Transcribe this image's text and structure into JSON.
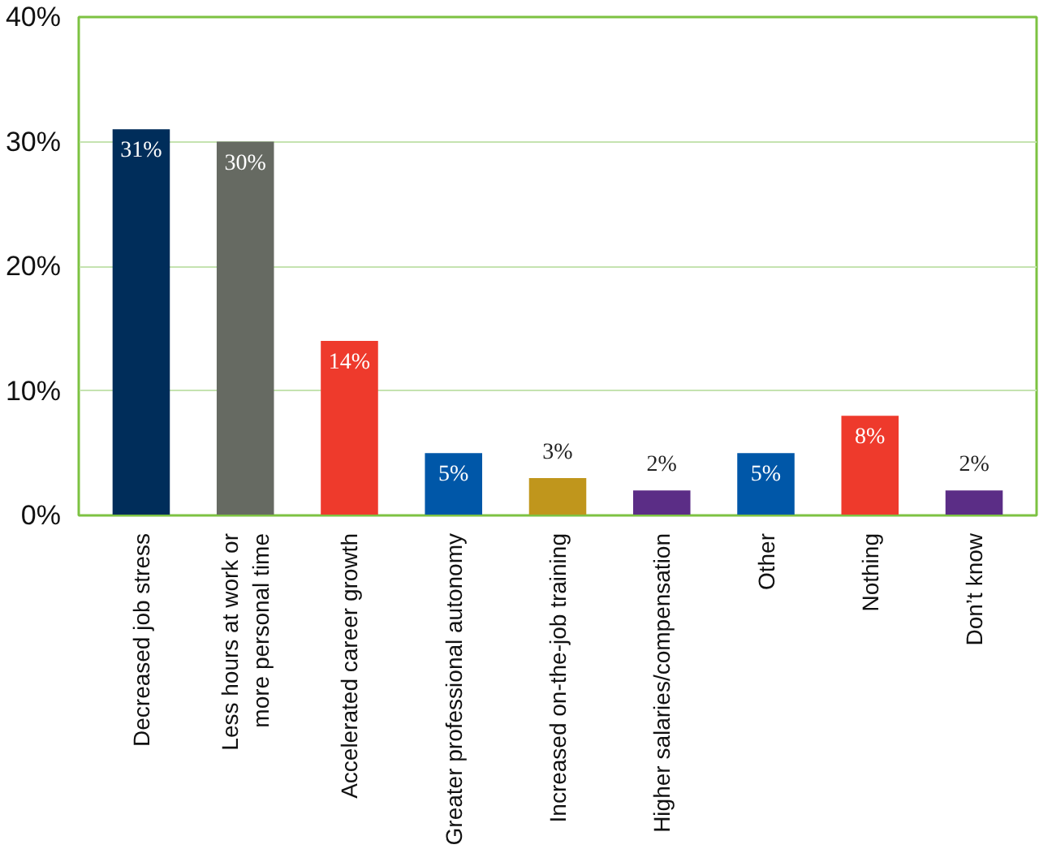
{
  "chart_data": {
    "type": "bar",
    "categories": [
      "Decreased job stress",
      "Less hours at work or\nmore personal time",
      "Accelerated career growth",
      "Greater professional autonomy",
      "Increased on-the-job training",
      "Higher salaries/compensation",
      "Other",
      "Nothing",
      "Don’t know"
    ],
    "values": [
      31,
      30,
      14,
      5,
      3,
      2,
      5,
      8,
      2
    ],
    "colors": [
      "#002d5a",
      "#666a62",
      "#ee3a2c",
      "#0057a8",
      "#c0961c",
      "#5b2d86",
      "#0057a8",
      "#ee3a2c",
      "#5b2d86"
    ],
    "value_labels": [
      "31%",
      "30%",
      "14%",
      "5%",
      "3%",
      "2%",
      "5%",
      "8%",
      "2%"
    ],
    "ylim": [
      0,
      40
    ],
    "yticks": [
      {
        "value": 0,
        "label": "0%"
      },
      {
        "value": 10,
        "label": "10%"
      },
      {
        "value": 20,
        "label": "20%"
      },
      {
        "value": 30,
        "label": "30%"
      },
      {
        "value": 40,
        "label": "40%"
      }
    ],
    "grid": "y"
  }
}
